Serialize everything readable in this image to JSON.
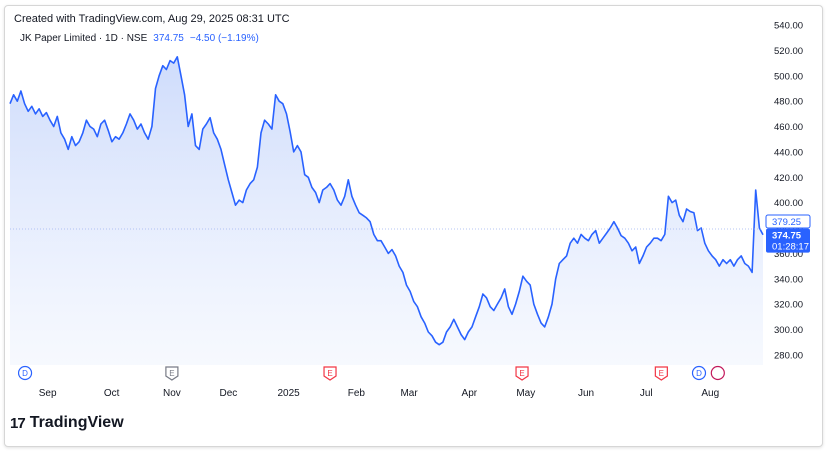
{
  "header": {
    "created": "Created with TradingView.com, Aug 29, 2025 08:31 UTC"
  },
  "legend": {
    "ticker": "JK Paper Limited · 1D · NSE",
    "price": "374.75",
    "change": "−4.50 (−1.19%)"
  },
  "brand": {
    "logo_mark": "17",
    "name": "TradingView"
  },
  "colors": {
    "line": "#2962ff",
    "fill_top": "#c9d8fb",
    "fill_bottom": "#f1f5fe",
    "last_label_bg": "#2962ff",
    "prev_label_border": "#2962ff",
    "dividend_marker": "#2962ff",
    "earnings_marker": "#f23645",
    "event_marker": "#787b86"
  },
  "chart_data": {
    "type": "area",
    "ylim": [
      272,
      544
    ],
    "y_ticks": [
      280,
      300,
      320,
      340,
      360,
      380,
      400,
      420,
      440,
      460,
      480,
      500,
      520,
      540
    ],
    "y_tick_labels": [
      "280.00",
      "300.00",
      "320.00",
      "340.00",
      "360.00",
      "380.00",
      "400.00",
      "420.00",
      "440.00",
      "460.00",
      "480.00",
      "500.00",
      "520.00",
      "540.00"
    ],
    "x_labels": [
      {
        "label": "Sep",
        "t": 0.05
      },
      {
        "label": "Oct",
        "t": 0.135
      },
      {
        "label": "Nov",
        "t": 0.215
      },
      {
        "label": "Dec",
        "t": 0.29
      },
      {
        "label": "2025",
        "t": 0.37
      },
      {
        "label": "Feb",
        "t": 0.46
      },
      {
        "label": "Mar",
        "t": 0.53
      },
      {
        "label": "Apr",
        "t": 0.61
      },
      {
        "label": "May",
        "t": 0.685
      },
      {
        "label": "Jun",
        "t": 0.765
      },
      {
        "label": "Jul",
        "t": 0.845
      },
      {
        "label": "Aug",
        "t": 0.93
      }
    ],
    "series": [
      {
        "values": [
          478,
          485,
          480,
          488,
          478,
          472,
          476,
          470,
          474,
          468,
          471,
          465,
          460,
          468,
          455,
          450,
          442,
          452,
          445,
          448,
          455,
          465,
          460,
          458,
          452,
          462,
          465,
          457,
          448,
          452,
          450,
          455,
          462,
          470,
          465,
          458,
          462,
          455,
          450,
          460,
          490,
          500,
          508,
          505,
          512,
          510,
          515,
          500,
          485,
          460,
          470,
          445,
          442,
          458,
          462,
          467,
          455,
          450,
          442,
          430,
          418,
          408,
          398,
          402,
          400,
          410,
          415,
          418,
          428,
          455,
          465,
          462,
          458,
          485,
          480,
          478,
          470,
          456,
          440,
          445,
          440,
          422,
          420,
          412,
          408,
          400,
          410,
          412,
          415,
          410,
          402,
          398,
          405,
          418,
          405,
          398,
          392,
          390,
          388,
          385,
          375,
          370,
          370,
          365,
          360,
          363,
          358,
          350,
          345,
          335,
          330,
          322,
          318,
          310,
          305,
          298,
          295,
          290,
          288,
          290,
          298,
          302,
          308,
          302,
          296,
          292,
          298,
          302,
          310,
          318,
          328,
          325,
          318,
          315,
          320,
          325,
          332,
          318,
          312,
          320,
          330,
          342,
          338,
          335,
          320,
          312,
          305,
          302,
          310,
          320,
          340,
          352,
          355,
          358,
          368,
          372,
          368,
          375,
          372,
          370,
          375,
          378,
          368,
          372,
          376,
          380,
          385,
          380,
          374,
          372,
          368,
          362,
          365,
          352,
          358,
          365,
          368,
          372,
          372,
          370,
          375,
          405,
          400,
          402,
          390,
          385,
          395,
          393,
          392,
          378,
          380,
          368,
          362,
          358,
          355,
          350,
          355,
          352,
          355,
          350,
          355,
          358,
          352,
          350,
          345,
          410,
          380,
          374.75
        ]
      }
    ],
    "current_price_label": "374.75",
    "countdown_label": "01:28:17",
    "prev_close_label": "379.25",
    "prev_close_value": 379.25,
    "event_markers": [
      {
        "letter": "D",
        "kind": "dividend",
        "t": 0.02
      },
      {
        "letter": "E",
        "kind": "event",
        "t": 0.215
      },
      {
        "letter": "E",
        "kind": "earnings",
        "t": 0.425
      },
      {
        "letter": "E",
        "kind": "earnings",
        "t": 0.68
      },
      {
        "letter": "E",
        "kind": "earnings",
        "t": 0.865
      },
      {
        "letter": "D",
        "kind": "dividend",
        "t": 0.915
      },
      {
        "letter": "",
        "kind": "other",
        "t": 0.94
      }
    ]
  }
}
